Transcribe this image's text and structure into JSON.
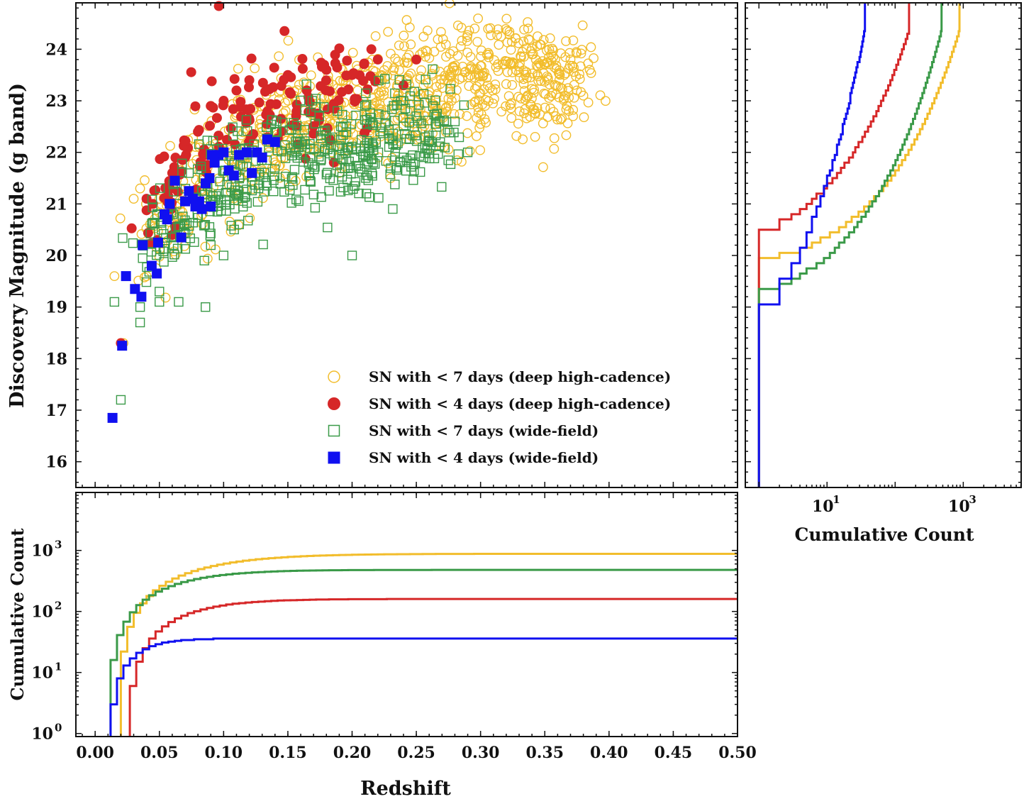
{
  "chart_data": [
    {
      "panel": "main",
      "type": "scatter",
      "xlabel": "",
      "ylabel": "Discovery Magnitude (g band)",
      "xlim": [
        -0.015,
        0.5
      ],
      "ylim": [
        15.5,
        24.9
      ],
      "xticks": [
        "0.00",
        "0.05",
        "0.10",
        "0.15",
        "0.20",
        "0.25",
        "0.30",
        "0.35",
        "0.40",
        "0.45",
        "0.50"
      ],
      "yticks": [
        "16",
        "17",
        "18",
        "19",
        "20",
        "21",
        "22",
        "23",
        "24"
      ],
      "legend_position": "lower-right",
      "series": [
        {
          "name": "SN with < 7 days (deep high-cadence)",
          "color": "#f2bd2c",
          "marker": "open-circle",
          "count": 880,
          "cloud": {
            "center": [
              [
                0.05,
                20.6
              ],
              [
                0.1,
                21.8
              ],
              [
                0.15,
                22.5
              ],
              [
                0.2,
                22.8
              ],
              [
                0.25,
                23.2
              ],
              [
                0.3,
                23.4
              ],
              [
                0.35,
                23.4
              ],
              [
                0.38,
                23.3
              ]
            ],
            "spread": 0.55
          },
          "points": [
            [
              0.015,
              19.6
            ],
            [
              0.022,
              18.3
            ],
            [
              0.03,
              21.1
            ],
            [
              0.035,
              21.3
            ],
            [
              0.04,
              19.6
            ],
            [
              0.05,
              21.1
            ],
            [
              0.06,
              20.5
            ],
            [
              0.09,
              22.9
            ],
            [
              0.19,
              21.6
            ],
            [
              0.23,
              21.5
            ],
            [
              0.27,
              22.7
            ],
            [
              0.34,
              23.9
            ],
            [
              0.355,
              23.9
            ],
            [
              0.37,
              23.8
            ],
            [
              0.375,
              23.2
            ],
            [
              0.38,
              23.1
            ],
            [
              0.385,
              23.6
            ]
          ]
        },
        {
          "name": "SN with < 4 days (deep high-cadence)",
          "color": "#d62728",
          "marker": "filled-circle",
          "count": 160,
          "cloud": {
            "center": [
              [
                0.04,
                20.5
              ],
              [
                0.07,
                21.8
              ],
              [
                0.1,
                22.6
              ],
              [
                0.14,
                23.0
              ],
              [
                0.18,
                23.2
              ],
              [
                0.22,
                23.4
              ]
            ],
            "spread": 0.45
          },
          "points": [
            [
              0.02,
              18.3
            ],
            [
              0.04,
              21.1
            ],
            [
              0.045,
              21.0
            ],
            [
              0.06,
              20.4
            ],
            [
              0.06,
              21.6
            ],
            [
              0.07,
              21.9
            ],
            [
              0.08,
              22.4
            ],
            [
              0.09,
              22.9
            ],
            [
              0.1,
              23.0
            ],
            [
              0.11,
              23.2
            ],
            [
              0.12,
              23.4
            ],
            [
              0.15,
              23.5
            ],
            [
              0.18,
              23.6
            ],
            [
              0.2,
              23.5
            ],
            [
              0.215,
              24.0
            ],
            [
              0.22,
              23.8
            ],
            [
              0.24,
              23.3
            ],
            [
              0.25,
              23.8
            ]
          ]
        },
        {
          "name": "SN with < 7 days (wide-field)",
          "color": "#3a9a48",
          "marker": "open-square",
          "count": 480,
          "cloud": {
            "center": [
              [
                0.04,
                20.2
              ],
              [
                0.06,
                20.7
              ],
              [
                0.09,
                21.3
              ],
              [
                0.12,
                21.7
              ],
              [
                0.16,
                21.9
              ],
              [
                0.2,
                22.1
              ],
              [
                0.24,
                22.3
              ],
              [
                0.27,
                22.6
              ]
            ],
            "spread": 0.5
          },
          "points": [
            [
              0.015,
              19.1
            ],
            [
              0.02,
              17.2
            ],
            [
              0.035,
              18.7
            ],
            [
              0.035,
              19.0
            ],
            [
              0.05,
              19.3
            ],
            [
              0.05,
              19.1
            ],
            [
              0.065,
              19.1
            ],
            [
              0.085,
              19.9
            ],
            [
              0.09,
              20.2
            ],
            [
              0.1,
              20.0
            ],
            [
              0.2,
              20.0
            ],
            [
              0.21,
              22.9
            ],
            [
              0.24,
              23.0
            ],
            [
              0.25,
              22.7
            ],
            [
              0.28,
              22.6
            ],
            [
              0.29,
              22.0
            ]
          ]
        },
        {
          "name": "SN with < 4 days (wide-field)",
          "color": "#1010f0",
          "marker": "filled-square",
          "count": 36,
          "points": [
            [
              0.0135,
              16.85
            ],
            [
              0.021,
              18.25
            ],
            [
              0.024,
              19.6
            ],
            [
              0.031,
              19.35
            ],
            [
              0.036,
              19.2
            ],
            [
              0.037,
              20.2
            ],
            [
              0.044,
              19.8
            ],
            [
              0.048,
              19.65
            ],
            [
              0.049,
              20.25
            ],
            [
              0.054,
              20.8
            ],
            [
              0.056,
              20.7
            ],
            [
              0.058,
              21.0
            ],
            [
              0.062,
              21.45
            ],
            [
              0.067,
              20.35
            ],
            [
              0.07,
              21.05
            ],
            [
              0.073,
              21.25
            ],
            [
              0.076,
              21.1
            ],
            [
              0.078,
              20.95
            ],
            [
              0.081,
              21.05
            ],
            [
              0.083,
              20.9
            ],
            [
              0.086,
              21.4
            ],
            [
              0.089,
              21.5
            ],
            [
              0.09,
              20.95
            ],
            [
              0.091,
              21.95
            ],
            [
              0.093,
              21.8
            ],
            [
              0.096,
              21.95
            ],
            [
              0.1,
              22.0
            ],
            [
              0.104,
              21.65
            ],
            [
              0.108,
              21.55
            ],
            [
              0.112,
              21.95
            ],
            [
              0.118,
              22.0
            ],
            [
              0.122,
              21.6
            ],
            [
              0.126,
              22.0
            ],
            [
              0.13,
              21.9
            ],
            [
              0.134,
              22.25
            ],
            [
              0.14,
              22.2
            ]
          ]
        }
      ]
    },
    {
      "panel": "bottom",
      "type": "line",
      "xlabel": "Redshift",
      "ylabel": "Cumulative Count",
      "xlim": [
        -0.015,
        0.5
      ],
      "ylim_log10": [
        -0.05,
        3.95
      ],
      "yscale": "log",
      "yticks": [
        {
          "mantissa": "10",
          "exponent": "0"
        },
        {
          "mantissa": "10",
          "exponent": "1"
        },
        {
          "mantissa": "10",
          "exponent": "2"
        },
        {
          "mantissa": "10",
          "exponent": "3"
        }
      ],
      "curves": [
        {
          "name": "SN with < 7 days (deep high-cadence)",
          "color": "#f2bd2c",
          "start": 0.02,
          "final": 880,
          "scale": 0.075
        },
        {
          "name": "SN with < 4 days (deep high-cadence)",
          "color": "#d62728",
          "start": 0.027,
          "final": 160,
          "scale": 0.055
        },
        {
          "name": "SN with < 7 days (wide-field)",
          "color": "#3a9a48",
          "start": 0.012,
          "final": 480,
          "scale": 0.06
        },
        {
          "name": "SN with < 4 days (wide-field)",
          "color": "#1010f0",
          "start": 0.012,
          "final": 36,
          "scale": 0.028
        }
      ]
    },
    {
      "panel": "right",
      "type": "line",
      "xlabel": "Cumulative Count",
      "ylabel": "",
      "xscale": "log",
      "xlim_log10": [
        -0.2,
        3.85
      ],
      "xticks": [
        {
          "mantissa": "10",
          "exponent": "1"
        },
        {
          "mantissa": "10",
          "exponent": "3"
        }
      ],
      "curves": [
        {
          "name": "SN with < 7 days (deep high-cadence)",
          "color": "#f2bd2c",
          "mag_min": 19.45,
          "final": 880
        },
        {
          "name": "SN with < 4 days (deep high-cadence)",
          "color": "#d62728",
          "mag_min": 19.7,
          "final": 160
        },
        {
          "name": "SN with < 7 days (wide-field)",
          "color": "#3a9a48",
          "mag_min": 18.65,
          "final": 480
        },
        {
          "name": "SN with < 4 days (wide-field)",
          "color": "#1010f0",
          "mag_min": 16.75,
          "final": 36
        }
      ]
    }
  ]
}
